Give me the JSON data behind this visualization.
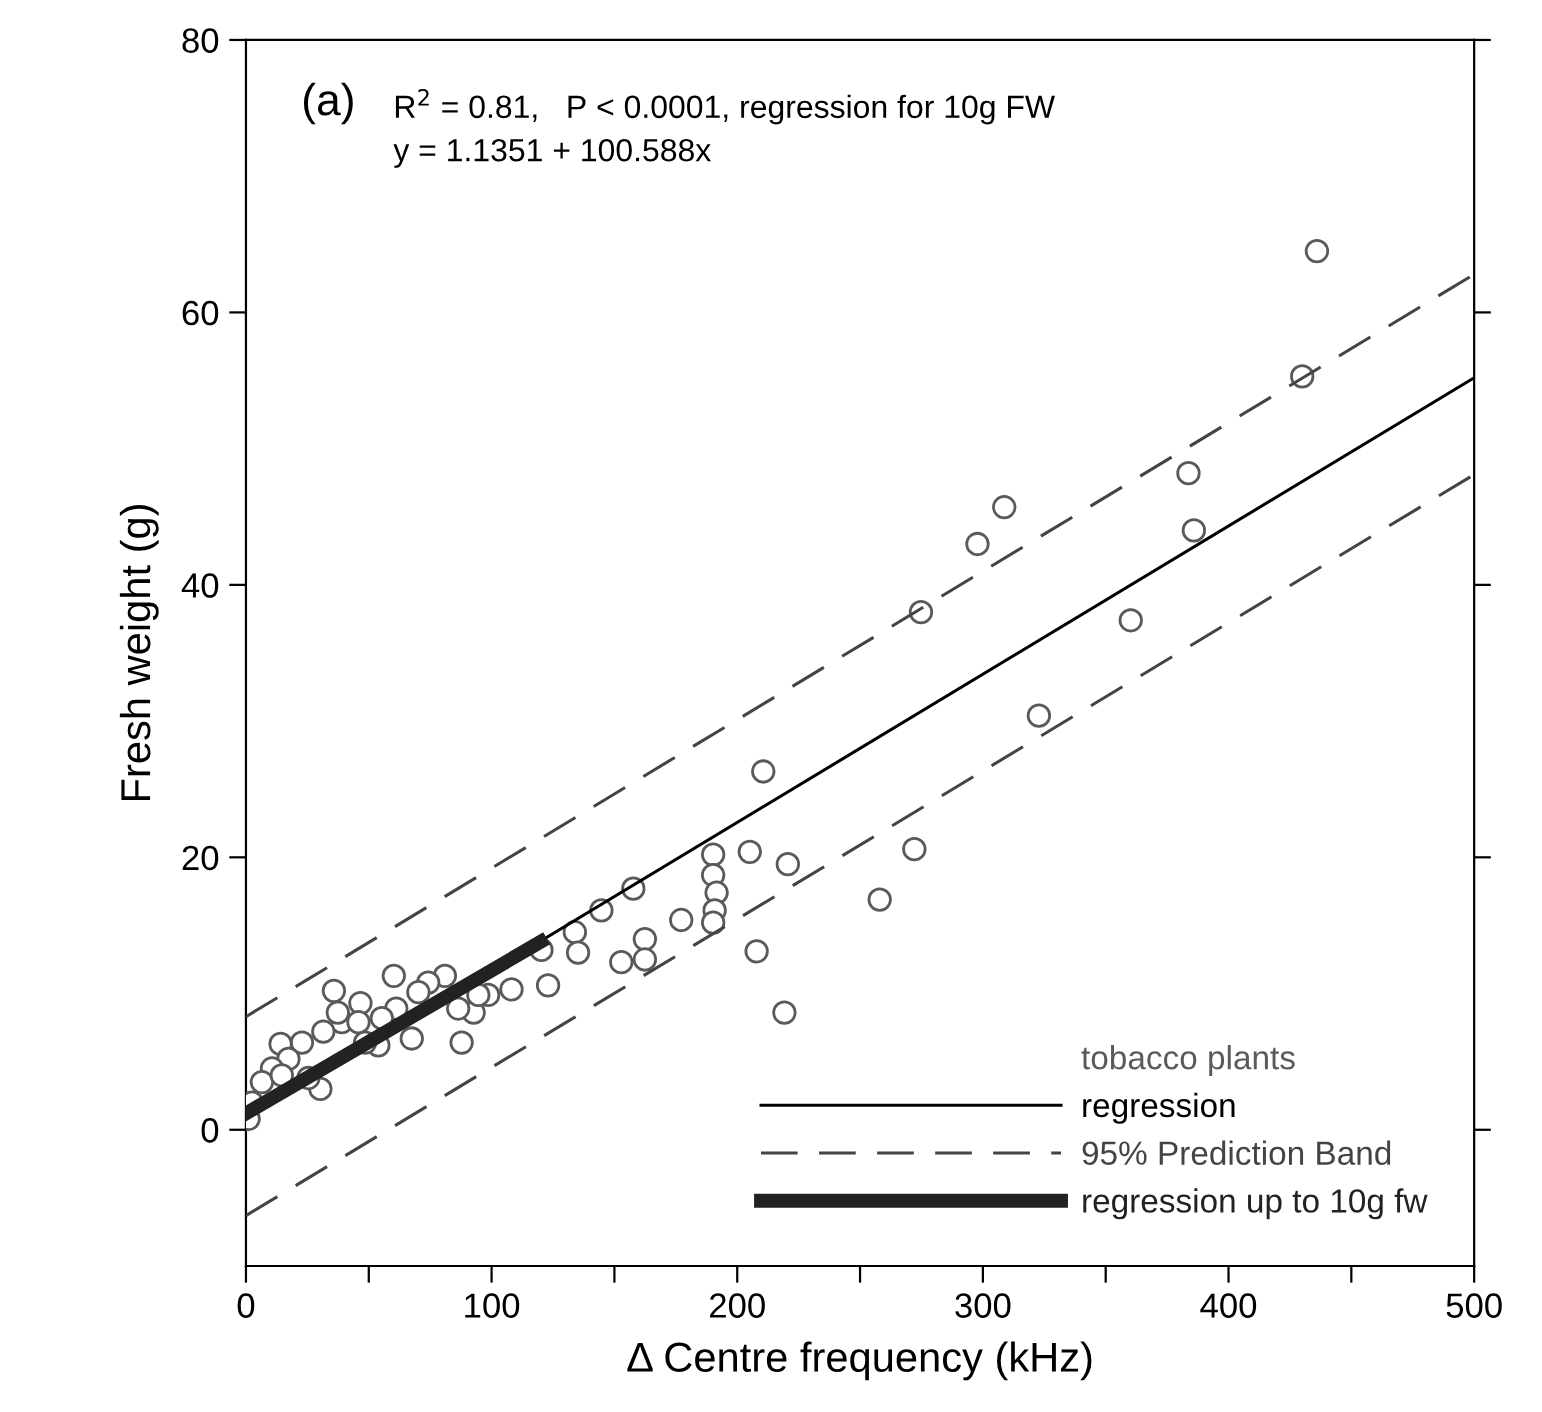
{
  "chart_data": {
    "type": "scatter",
    "xlabel": "Δ Centre frequency (kHz)",
    "ylabel": "Fresh weight (g)",
    "xlim": [
      0,
      500
    ],
    "ylim": [
      -10,
      80
    ],
    "xticks": [
      0,
      {
        "value": 50,
        "label": null
      },
      100,
      {
        "value": 150,
        "label": null
      },
      200,
      {
        "value": 250,
        "label": null
      },
      300,
      {
        "value": 350,
        "label": null
      },
      400,
      {
        "value": 450,
        "label": null
      },
      500
    ],
    "yticks": [
      0,
      20,
      40,
      60,
      80
    ],
    "grid": false,
    "legend": "bottom right",
    "annotations": [
      "(a)",
      "R$^{2}$ = 0.81,   P < 0.0001, regression for 10g FW",
      "y = 1.1351 + 100.588x"
    ],
    "series": [
      {
        "name": "tobacco plants",
        "color": "#5a5a5a",
        "marker": "circle",
        "x": [
          436,
          430,
          383.7,
          385.9,
          308.7,
          297.8,
          274.8,
          360.2,
          322.8,
          210.6,
          190.2,
          205.1,
          220.6,
          272.1,
          258,
          190.2,
          191.6,
          190.8,
          190.2,
          177.2,
          207.9,
          219.2,
          157.7,
          144.7,
          133.9,
          135.2,
          162.4,
          162.4,
          152.8,
          123,
          120.3,
          108.1,
          98.6,
          92.7,
          87.8,
          86.4,
          81.0,
          74.2,
          67.5,
          70.2,
          60.2,
          61.2,
          53.9,
          46.6,
          39.0,
          35.8,
          31.5,
          30.3,
          22.8,
          14.1,
          17.3,
          10.6,
          6.5,
          2.4,
          1.1,
          37.4,
          45.8,
          55.3,
          48.5,
          25.4,
          14.6,
          94.6
        ],
        "values": [
          64.5,
          55.3,
          48.2,
          44.0,
          45.7,
          43.0,
          38.0,
          37.4,
          30.4,
          26.3,
          20.2,
          20.4,
          19.5,
          20.6,
          16.9,
          18.7,
          17.4,
          16.1,
          15.2,
          15.4,
          13.1,
          8.6,
          17.7,
          16.1,
          14.5,
          13.0,
          14.0,
          12.5,
          12.3,
          10.6,
          13.2,
          10.3,
          9.9,
          8.6,
          6.4,
          8.9,
          11.3,
          10.8,
          6.7,
          10.1,
          11.3,
          8.9,
          6.2,
          9.3,
          7.9,
          10.2,
          7.2,
          3.0,
          6.4,
          6.3,
          5.2,
          4.5,
          3.5,
          2.0,
          0.8,
          8.6,
          7.9,
          8.2,
          6.4,
          3.8,
          4.0,
          9.9
        ]
      },
      {
        "name": "regression",
        "type": "line",
        "color": "#000000",
        "line_style": "solid",
        "x": [
          0,
          500
        ],
        "values": [
          0.8,
          55.2
        ]
      },
      {
        "name": "95% Prediction Band",
        "type": "line",
        "color": "#444444",
        "line_style": "dashed",
        "x": [
          0,
          500
        ],
        "values": [
          8.3,
          62.8
        ]
      },
      {
        "type": "line",
        "color": "#444444",
        "line_style": "dashed",
        "x": [
          0,
          500
        ],
        "values": [
          -6.3,
          48.1
        ]
      },
      {
        "name": "regression up to 10g fw",
        "type": "line",
        "color": "#222222",
        "line_style": "solid",
        "x": [
          0,
          120
        ],
        "values": [
          1.2,
          13.8
        ]
      }
    ]
  }
}
